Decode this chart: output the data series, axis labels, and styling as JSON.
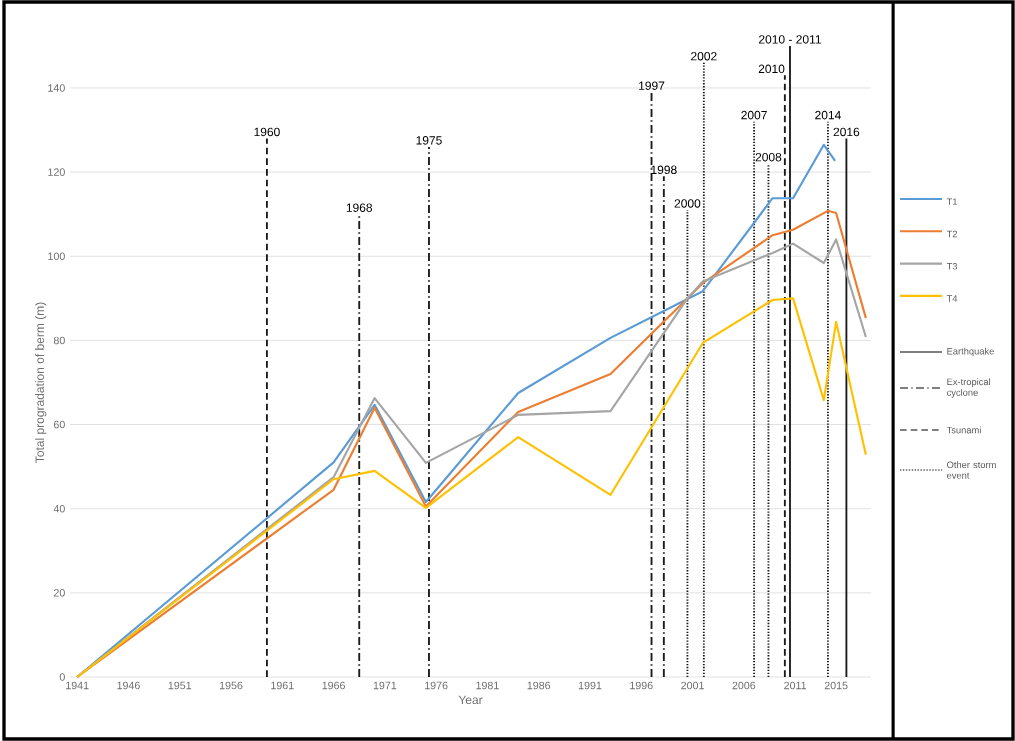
{
  "chart_data": {
    "type": "line",
    "xlabel": "Year",
    "ylabel": "Total progradation of berm (m)",
    "xlim": [
      1940.3,
      2018.4
    ],
    "ylim": [
      0,
      140
    ],
    "xticks": [
      1941,
      1946,
      1951,
      1956,
      1961,
      1966,
      1971,
      1976,
      1981,
      1986,
      1991,
      1996,
      2001,
      2006,
      2011,
      2015
    ],
    "yticks": [
      0,
      20,
      40,
      60,
      80,
      100,
      120,
      140
    ],
    "grid": "y",
    "legend": "right",
    "marker": "none",
    "series": [
      {
        "name": "T1",
        "color": "#5b9bd5",
        "x": [
          1941,
          1966,
          1970,
          1975,
          1984,
          1993,
          2002,
          2008.8,
          2010.8,
          2013.8,
          2014.9
        ],
        "values": [
          0,
          51,
          64.7,
          41.6,
          67.5,
          80.6,
          91.7,
          113.8,
          113.8,
          126.5,
          122.7
        ]
      },
      {
        "name": "T2",
        "color": "#ed7d31",
        "x": [
          1941,
          1966,
          1970,
          1975,
          1984,
          1993,
          2002,
          2008.8,
          2010.8,
          2014.2,
          2015,
          2017.9
        ],
        "values": [
          0,
          44.5,
          64,
          40.5,
          63,
          72,
          93.6,
          105,
          106.3,
          110.8,
          110.3,
          85.3
        ]
      },
      {
        "name": "T3",
        "color": "#a5a5a5",
        "x": [
          1941,
          1966,
          1970,
          1975,
          1984,
          1993,
          2000.5,
          2002,
          2008.8,
          2010.8,
          2013.8,
          2015,
          2017.9
        ],
        "values": [
          0,
          47.5,
          66.3,
          50.9,
          62.3,
          63.2,
          90,
          94,
          100.8,
          103,
          98.4,
          104,
          80.8
        ]
      },
      {
        "name": "T4",
        "color": "#ffc000",
        "x": [
          1941,
          1966,
          1970,
          1975,
          1984,
          1993,
          2002,
          2008.8,
          2010.8,
          2013.8,
          2015,
          2017.9
        ],
        "values": [
          0,
          47,
          49,
          40.2,
          57,
          43.3,
          79.4,
          89.6,
          90,
          65.8,
          84.4,
          52.8
        ]
      }
    ],
    "ref_lines": [
      {
        "axis": "x",
        "value": 1959.5,
        "label": "1960",
        "line_style": "dashed",
        "color": "#1a1a1a"
      },
      {
        "axis": "x",
        "value": 1968.5,
        "label": "1968",
        "line_style": "dashdot",
        "color": "#1a1a1a"
      },
      {
        "axis": "x",
        "value": 1975.3,
        "label": "1975",
        "line_style": "dashdot",
        "color": "#1a1a1a"
      },
      {
        "axis": "x",
        "value": 1997,
        "label": "1997",
        "line_style": "dashdot",
        "color": "#1a1a1a"
      },
      {
        "axis": "x",
        "value": 1998.2,
        "label": "1998",
        "line_style": "dashdot",
        "color": "#1a1a1a"
      },
      {
        "axis": "x",
        "value": 2000.5,
        "label": "2000",
        "line_style": "dotted",
        "color": "#1a1a1a"
      },
      {
        "axis": "x",
        "value": 2002.1,
        "label": "2002",
        "line_style": "dotted",
        "color": "#1a1a1a"
      },
      {
        "axis": "x",
        "value": 2007,
        "label": "2007",
        "line_style": "dotted",
        "color": "#1a1a1a"
      },
      {
        "axis": "x",
        "value": 2008.4,
        "label": "2008",
        "line_style": "dotted",
        "color": "#1a1a1a"
      },
      {
        "axis": "x",
        "value": 2010,
        "label": "2010",
        "line_style": "dashed",
        "color": "#1a1a1a"
      },
      {
        "axis": "x",
        "value": 2010.5,
        "label": "2010 - 2011",
        "line_style": "solid",
        "color": "#1a1a1a"
      },
      {
        "axis": "x",
        "value": 2014.2,
        "label": "2014",
        "line_style": "dotted",
        "color": "#1a1a1a"
      },
      {
        "axis": "x",
        "value": 2016,
        "label": "2016",
        "line_style": "solid",
        "color": "#1a1a1a"
      }
    ],
    "annotations": [
      "Earthquake",
      "Ex-tropical cyclone",
      "Tsunami",
      "Other storm event"
    ]
  }
}
